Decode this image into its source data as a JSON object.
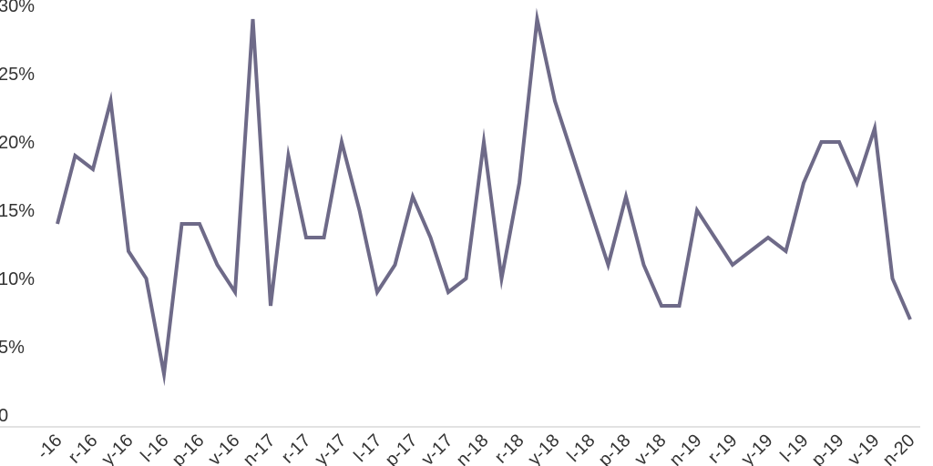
{
  "chart_data": {
    "type": "line",
    "title": "",
    "xlabel": "",
    "ylabel": "",
    "ylim": [
      0,
      30
    ],
    "yticks": [
      0,
      5,
      10,
      15,
      20,
      25,
      30
    ],
    "ytick_labels": [
      "0",
      "5%",
      "10%",
      "15%",
      "20%",
      "25%",
      "30%"
    ],
    "grid": false,
    "legend": "none",
    "line_color": "#6e6a88",
    "axis_color": "#d9d9d9",
    "x_tick_labels": [
      "-16",
      "r-16",
      "y-16",
      "l-16",
      "p-16",
      "v-16",
      "n-17",
      "r-17",
      "y-17",
      "l-17",
      "p-17",
      "v-17",
      "n-18",
      "r-18",
      "y-18",
      "l-18",
      "p-18",
      "v-18",
      "n-19",
      "r-19",
      "y-19",
      "l-19",
      "p-19",
      "v-19",
      "n-20"
    ],
    "series": [
      {
        "values": [
          14,
          19,
          18,
          23,
          12,
          10,
          3,
          14,
          14,
          11,
          9,
          29,
          8,
          19,
          13,
          13,
          20,
          15,
          9,
          11,
          16,
          13,
          9,
          10,
          20,
          10,
          17,
          29,
          23,
          19,
          15,
          11,
          16,
          11,
          8,
          8,
          15,
          13,
          11,
          12,
          13,
          12,
          17,
          20,
          20,
          17,
          21,
          10,
          7
        ]
      }
    ]
  }
}
